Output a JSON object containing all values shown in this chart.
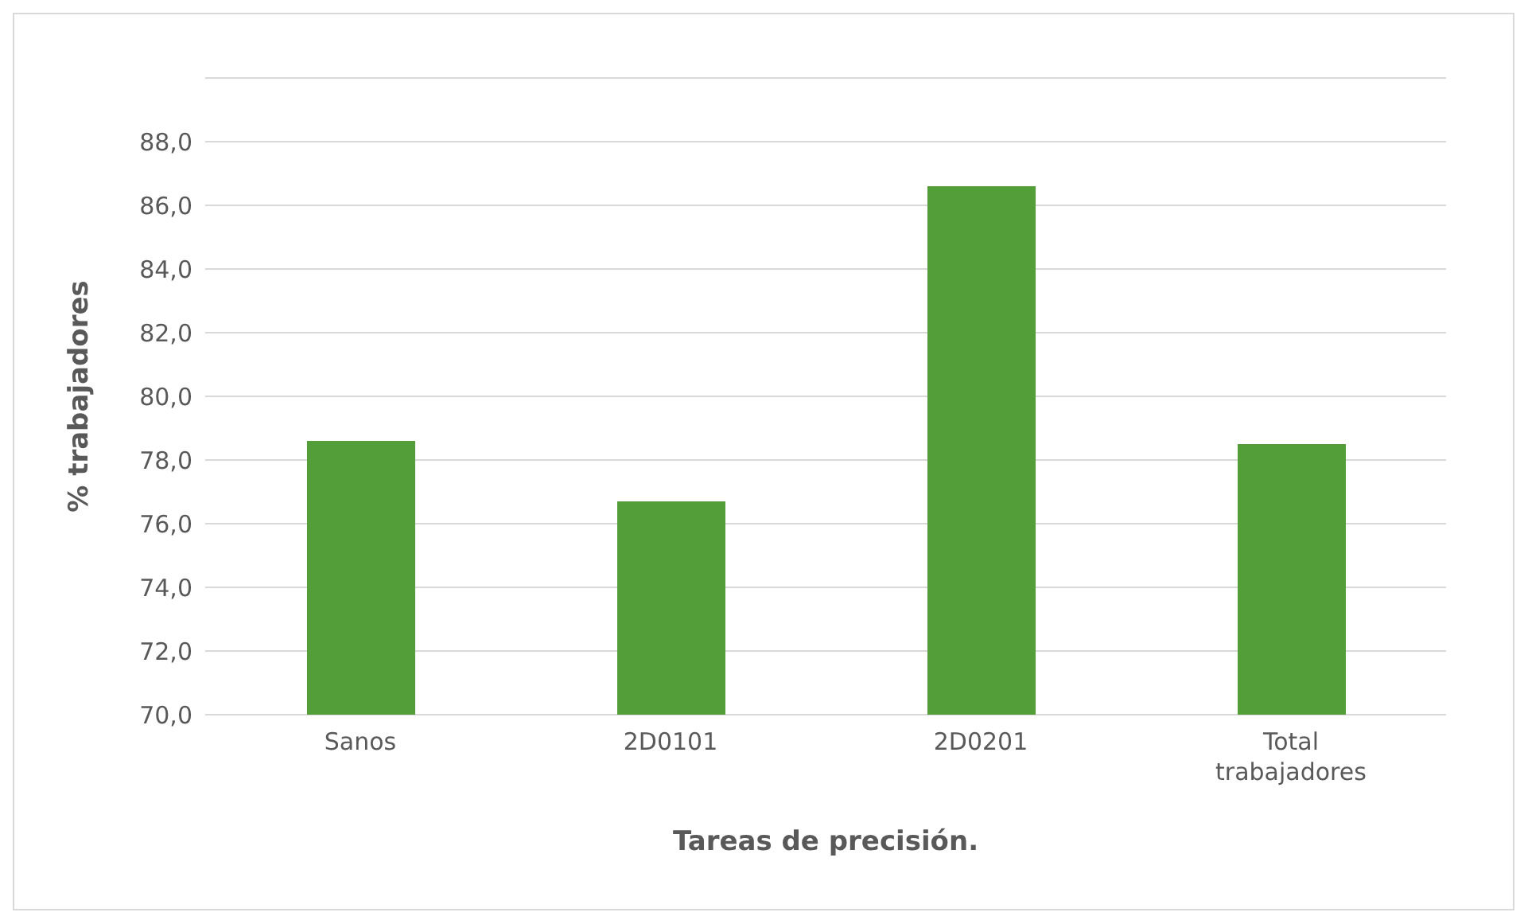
{
  "chart_data": {
    "type": "bar",
    "categories": [
      "Sanos",
      "2D0101",
      "2D0201",
      "Total trabajadores"
    ],
    "values": [
      78.6,
      76.7,
      86.6,
      78.5
    ],
    "color": "#549e39",
    "ylabel": "% trabajadores",
    "xlabel": "Tareas de precisión.",
    "ylim": [
      70,
      90
    ],
    "yticks": [
      {
        "value": 70,
        "label": "70,0"
      },
      {
        "value": 72,
        "label": "72,0"
      },
      {
        "value": 74,
        "label": "74,0"
      },
      {
        "value": 76,
        "label": "76,0"
      },
      {
        "value": 78,
        "label": "78,0"
      },
      {
        "value": 80,
        "label": "80,0"
      },
      {
        "value": 82,
        "label": "82,0"
      },
      {
        "value": 84,
        "label": "84,0"
      },
      {
        "value": 86,
        "label": "86,0"
      },
      {
        "value": 88,
        "label": "88,0"
      },
      {
        "value": 90,
        "label": null
      }
    ],
    "grid": "y"
  }
}
